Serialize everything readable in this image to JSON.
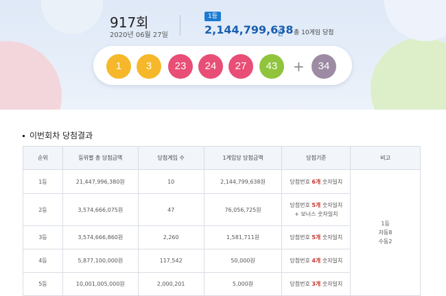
{
  "draw": {
    "round": "917회",
    "date": "2020년 06월 27일",
    "rank_label": "1등",
    "first_prize_amount": "2,144,799,638",
    "first_prize_unit": "원",
    "first_prize_games": "총 10게임 당첨",
    "numbers": [
      {
        "value": "1",
        "color": "#f6b82a"
      },
      {
        "value": "3",
        "color": "#f6b82a"
      },
      {
        "value": "23",
        "color": "#e84e76"
      },
      {
        "value": "24",
        "color": "#e84e76"
      },
      {
        "value": "27",
        "color": "#e84e76"
      },
      {
        "value": "43",
        "color": "#8fc43c"
      }
    ],
    "plus": "+",
    "bonus": {
      "value": "34",
      "color": "#9c8ba3"
    }
  },
  "results": {
    "title": "이번회차 당첨결과",
    "headers": [
      "순위",
      "등위별 총 당첨금액",
      "당첨게임 수",
      "1게임당 당첨금액",
      "당첨기준",
      "비고"
    ],
    "rows": [
      {
        "rank": "1등",
        "total": "21,447,996,380원",
        "winners": "10",
        "per_game": "2,144,799,638원",
        "criteria_pre": "당첨번호 ",
        "criteria_strong": "6개",
        "criteria_post": " 숫자일치",
        "criteria_line2": ""
      },
      {
        "rank": "2등",
        "total": "3,574,666,075원",
        "winners": "47",
        "per_game": "76,056,725원",
        "criteria_pre": "당첨번호 ",
        "criteria_strong": "5개",
        "criteria_post": " 숫자일치",
        "criteria_line2": "+ 보너스 숫자일치"
      },
      {
        "rank": "3등",
        "total": "3,574,666,860원",
        "winners": "2,260",
        "per_game": "1,581,711원",
        "criteria_pre": "당첨번호 ",
        "criteria_strong": "5개",
        "criteria_post": " 숫자일치",
        "criteria_line2": ""
      },
      {
        "rank": "4등",
        "total": "5,877,100,000원",
        "winners": "117,542",
        "per_game": "50,000원",
        "criteria_pre": "당첨번호 ",
        "criteria_strong": "4개",
        "criteria_post": " 숫자일치",
        "criteria_line2": ""
      },
      {
        "rank": "5등",
        "total": "10,001,005,000원",
        "winners": "2,000,201",
        "per_game": "5,000원",
        "criteria_pre": "당첨번호 ",
        "criteria_strong": "3개",
        "criteria_post": " 숫자일치",
        "criteria_line2": ""
      }
    ],
    "note_lines": [
      "1등",
      "자동8",
      "수동2"
    ]
  }
}
